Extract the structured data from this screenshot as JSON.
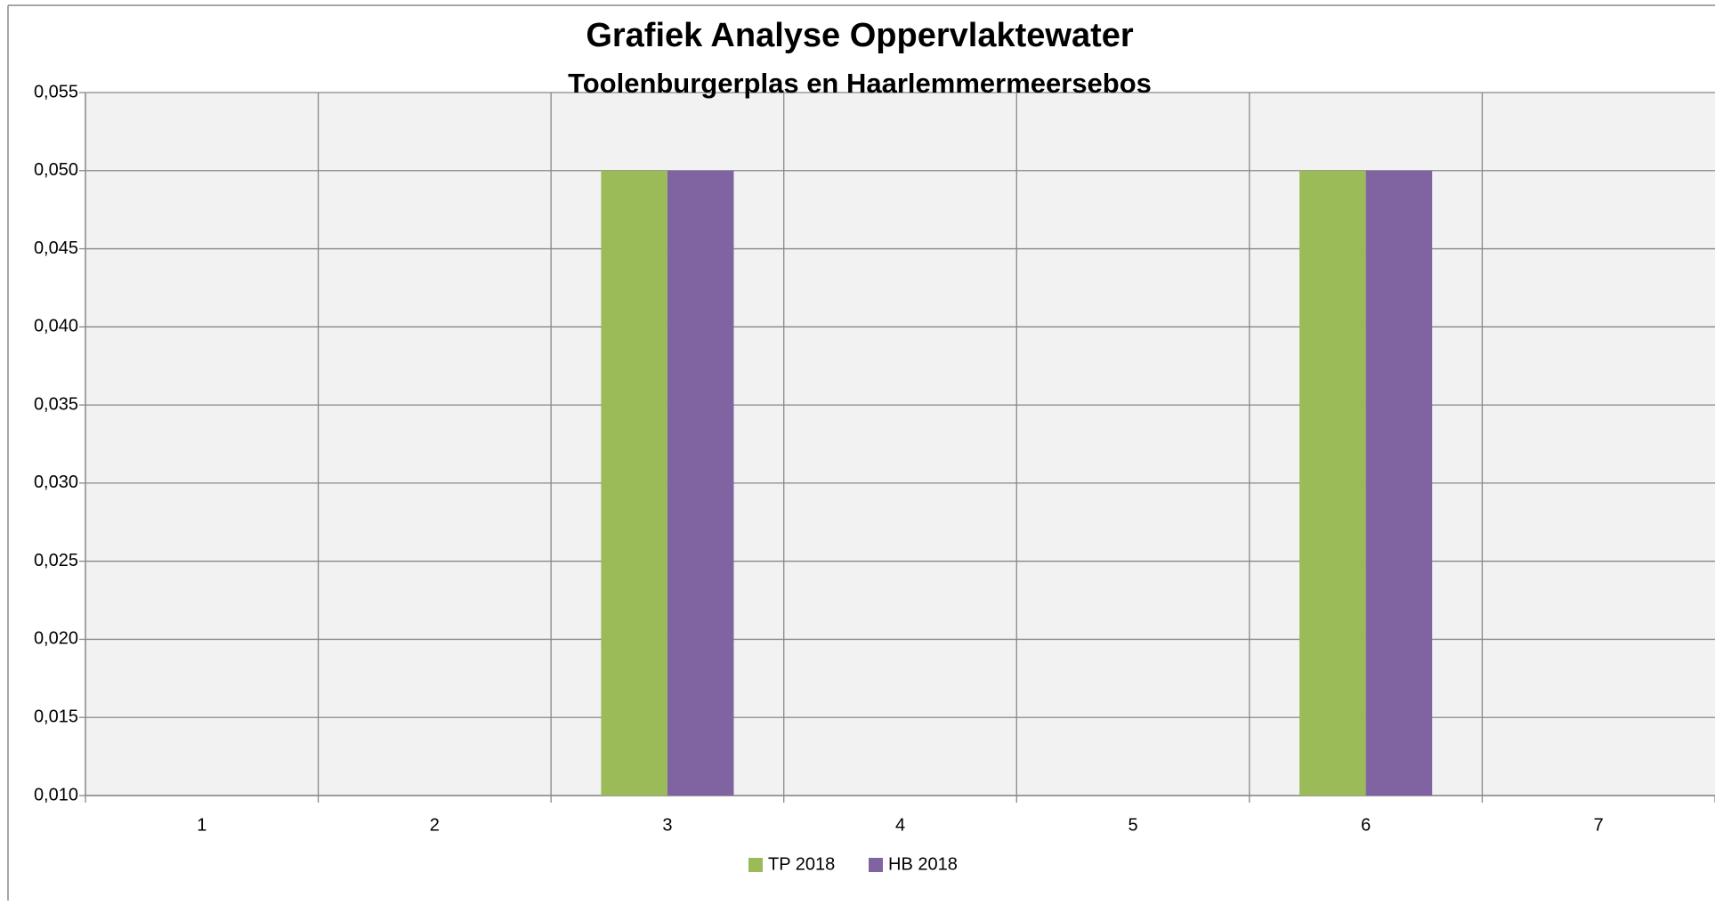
{
  "chart_data": {
    "type": "bar",
    "title": "Grafiek Analyse Oppervlaktewater",
    "subtitle": "Toolenburgerplas en Haarlemmermeersebos",
    "categories": [
      "1",
      "2",
      "3",
      "4",
      "5",
      "6",
      "7"
    ],
    "series": [
      {
        "name": "TP 2018",
        "color": "#9bbb59",
        "values": [
          null,
          null,
          0.05,
          null,
          null,
          0.05,
          null
        ]
      },
      {
        "name": "HB 2018",
        "color": "#8064a2",
        "values": [
          null,
          null,
          0.05,
          null,
          null,
          0.05,
          null
        ]
      }
    ],
    "ylim": [
      0.01,
      0.055
    ],
    "yticks": [
      {
        "value": 0.01,
        "label": "0,010"
      },
      {
        "value": 0.015,
        "label": "0,015"
      },
      {
        "value": 0.02,
        "label": "0,020"
      },
      {
        "value": 0.025,
        "label": "0,025"
      },
      {
        "value": 0.03,
        "label": "0,030"
      },
      {
        "value": 0.035,
        "label": "0,035"
      },
      {
        "value": 0.04,
        "label": "0,040"
      },
      {
        "value": 0.045,
        "label": "0,045"
      },
      {
        "value": 0.05,
        "label": "0,050"
      },
      {
        "value": 0.055,
        "label": "0,055"
      }
    ],
    "grid": true,
    "legend": "bottom"
  }
}
